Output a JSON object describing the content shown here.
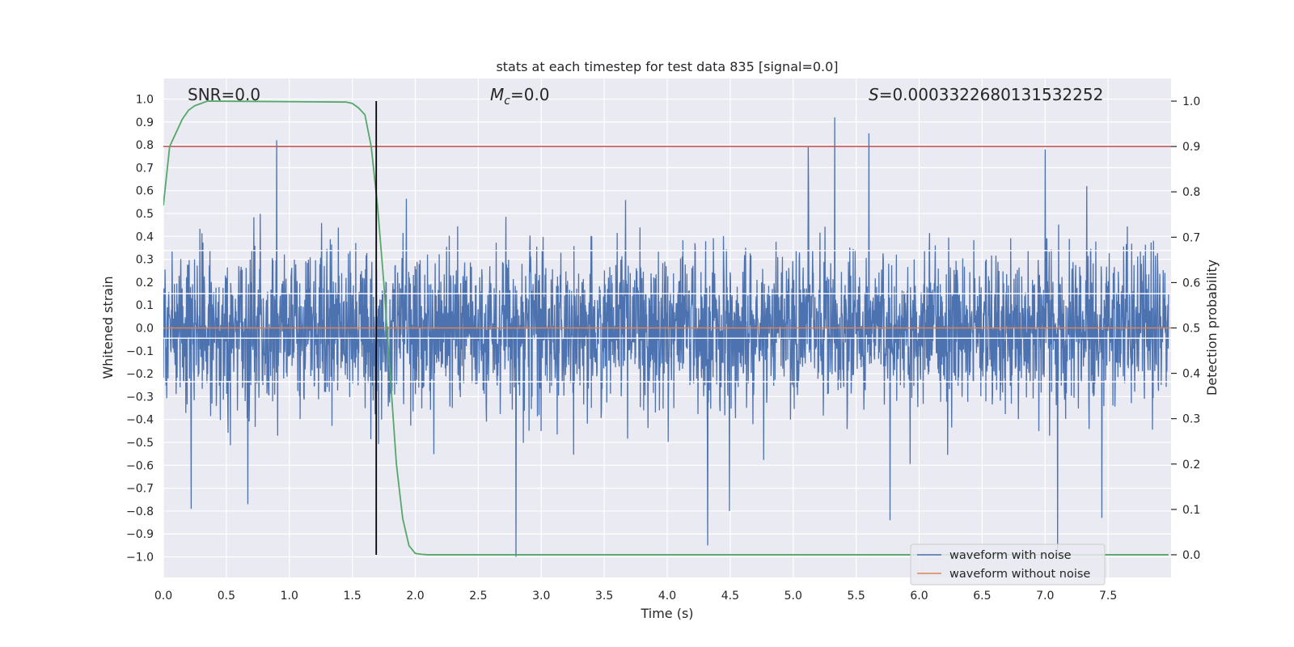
{
  "chart_data": {
    "type": "line",
    "title": "stats at each timestep for test data 835 [signal=0.0]",
    "xlabel": "Time (s)",
    "ylabel": "Whitened strain",
    "y2label": "Detection probability",
    "xlim": [
      0.0,
      8.0
    ],
    "ylim": [
      -1.09,
      1.09
    ],
    "y2lim": [
      -0.05,
      1.05
    ],
    "x_ticks": [
      0.0,
      0.5,
      1.0,
      1.5,
      2.0,
      2.5,
      3.0,
      3.5,
      4.0,
      4.5,
      5.0,
      5.5,
      6.0,
      6.5,
      7.0,
      7.5
    ],
    "y_ticks": [
      -1.0,
      -0.9,
      -0.8,
      -0.7,
      -0.6,
      -0.5,
      -0.4,
      -0.3,
      -0.2,
      -0.1,
      0.0,
      0.1,
      0.2,
      0.3,
      0.4,
      0.5,
      0.6,
      0.7,
      0.8,
      0.9,
      1.0
    ],
    "y2_ticks": [
      0.0,
      0.1,
      0.2,
      0.3,
      0.4,
      0.5,
      0.6,
      0.7,
      0.8,
      0.9,
      1.0
    ],
    "grid": true,
    "legend_position": "lower-right",
    "annotations": {
      "snr": "SNR=0.0",
      "mc_symbol": "M",
      "mc_sub": "c",
      "mc_value": "=0.0",
      "s_symbol": "S",
      "s_value": "=0.0003322680131532252"
    },
    "vertical_line_x": 1.69,
    "threshold_probability": 0.9,
    "series": [
      {
        "name": "waveform with noise",
        "color": "#4c72b0",
        "axis": "left",
        "envelope_typical": [
          -0.4,
          0.4
        ],
        "notable_peaks": [
          {
            "x": 0.9,
            "y": 0.82
          },
          {
            "x": 5.33,
            "y": 0.92
          },
          {
            "x": 5.12,
            "y": 0.79
          },
          {
            "x": 5.6,
            "y": 0.85
          },
          {
            "x": 7.0,
            "y": 0.78
          },
          {
            "x": 2.8,
            "y": -1.0
          },
          {
            "x": 4.32,
            "y": -0.95
          },
          {
            "x": 7.1,
            "y": -0.99
          },
          {
            "x": 0.22,
            "y": -0.79
          },
          {
            "x": 0.67,
            "y": -0.77
          },
          {
            "x": 5.77,
            "y": -0.84
          },
          {
            "x": 7.45,
            "y": -0.83
          }
        ]
      },
      {
        "name": "waveform without noise",
        "color": "#dd8452",
        "axis": "left",
        "x": [
          0.0,
          8.0
        ],
        "y": [
          0.0,
          0.0
        ]
      },
      {
        "name": "detection probability",
        "color": "#55a868",
        "axis": "right",
        "x": [
          0.0,
          0.05,
          0.1,
          0.15,
          0.2,
          0.25,
          0.3,
          0.35,
          0.4,
          1.45,
          1.5,
          1.55,
          1.6,
          1.65,
          1.7,
          1.75,
          1.8,
          1.85,
          1.9,
          1.95,
          2.0,
          2.05,
          2.1,
          7.98
        ],
        "y": [
          0.77,
          0.9,
          0.93,
          0.96,
          0.98,
          0.99,
          0.995,
          1.0,
          1.0,
          0.998,
          0.995,
          0.985,
          0.97,
          0.9,
          0.77,
          0.6,
          0.4,
          0.2,
          0.08,
          0.02,
          0.003,
          0.001,
          0.0,
          0.0
        ]
      },
      {
        "name": "threshold",
        "color": "#c44e52",
        "axis": "right",
        "x": [
          0.0,
          8.0
        ],
        "y": [
          0.9,
          0.9
        ]
      }
    ]
  }
}
